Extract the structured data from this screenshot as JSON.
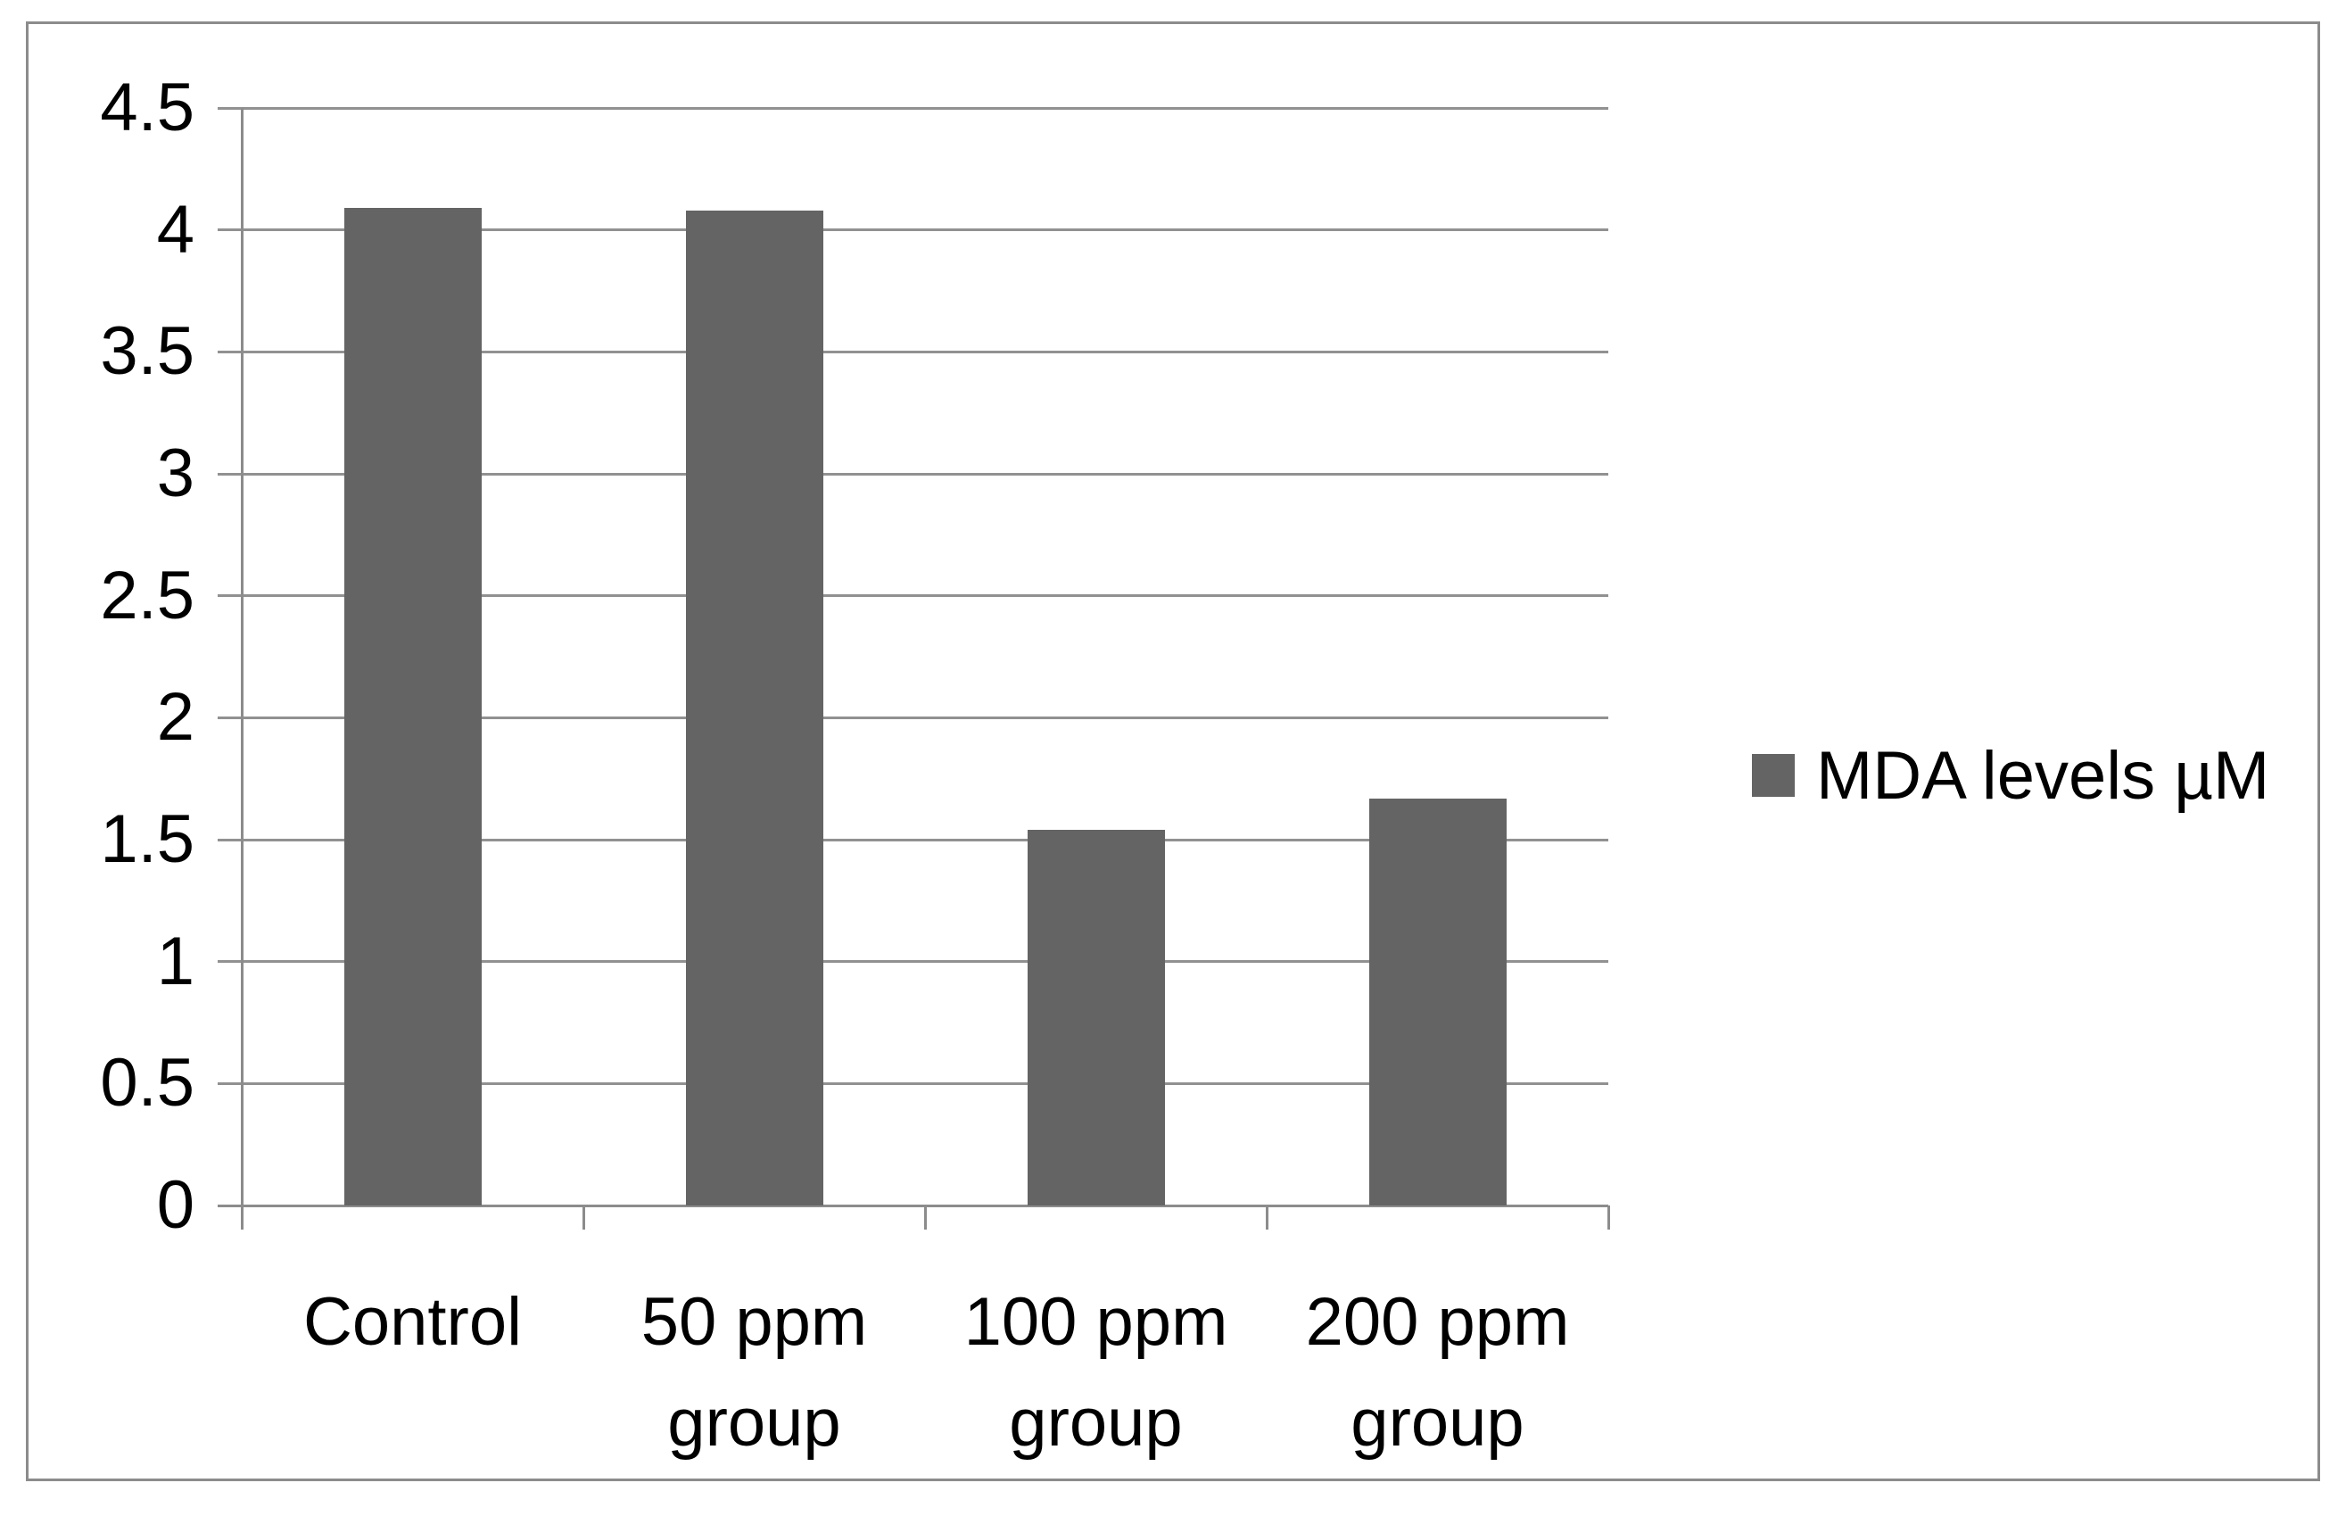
{
  "chart_data": {
    "type": "bar",
    "title": "",
    "xlabel": "",
    "ylabel": "",
    "categories": [
      "Control",
      "50 ppm group",
      "100 ppm group",
      "200 ppm group"
    ],
    "series": [
      {
        "name": "MDA levels µM",
        "values": [
          4.09,
          4.08,
          1.54,
          1.67
        ]
      }
    ],
    "ylim": [
      0,
      4.5
    ],
    "ytick_step": 0.5,
    "ytick_labels": [
      "0",
      "0.5",
      "1",
      "1.5",
      "2",
      "2.5",
      "3",
      "3.5",
      "4",
      "4.5"
    ],
    "grid": true,
    "legend_position": "right-middle",
    "legend_marker": "square-icon"
  },
  "legend": {
    "label": "MDA levels µM"
  },
  "colors": {
    "bar_fill": "#646464",
    "legend_marker_fill": "#646464",
    "gridline": "#919191",
    "axis_line": "#8c8c8c",
    "frame_border": "#8c8c8c",
    "text": "#000000",
    "background": "#ffffff"
  }
}
